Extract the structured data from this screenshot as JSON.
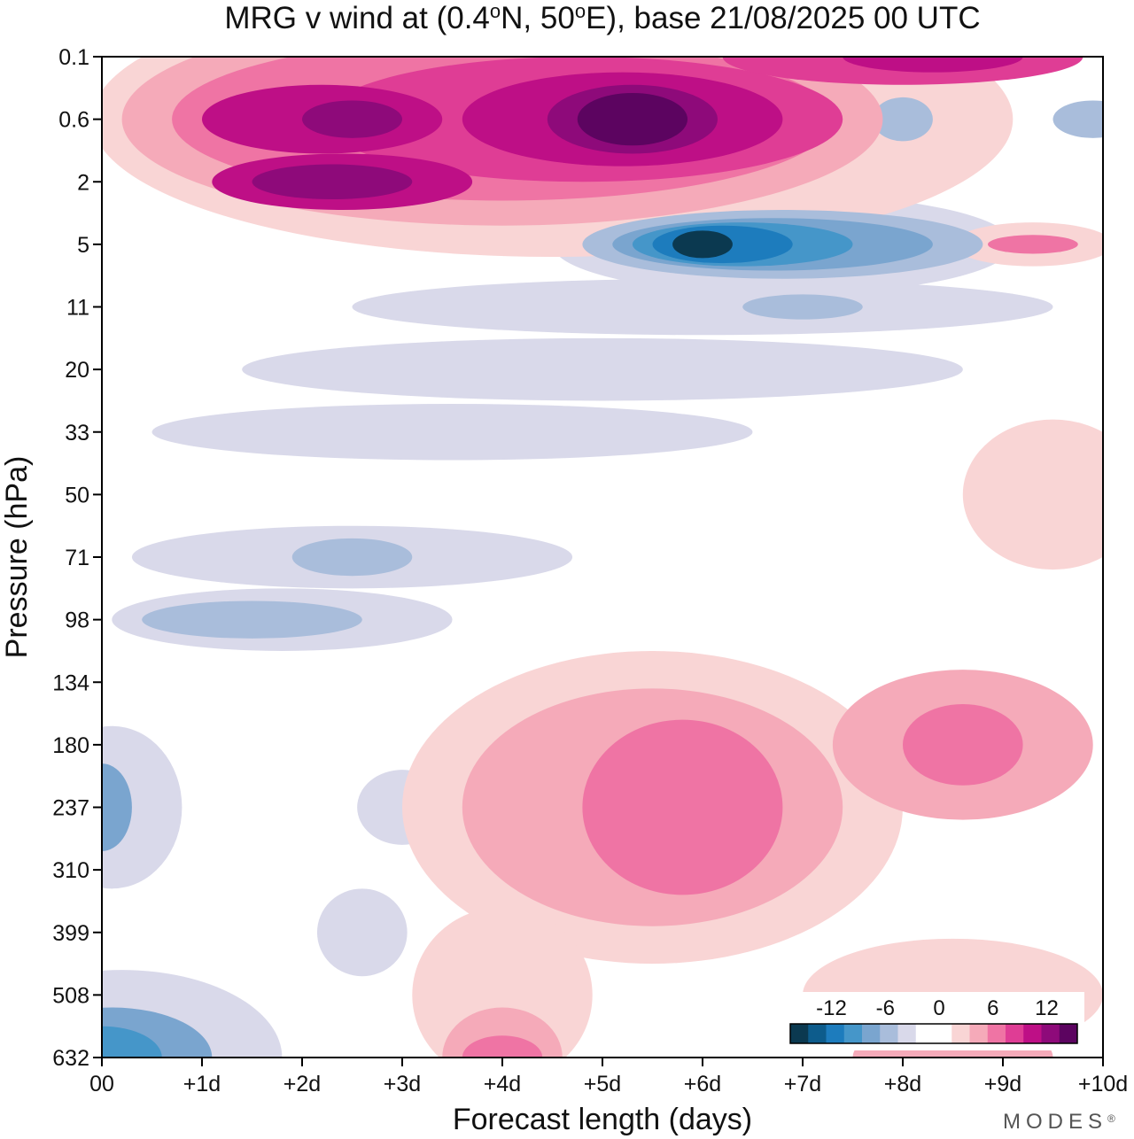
{
  "chart_data": {
    "type": "heatmap",
    "title": "MRG v wind at (0.4°N, 50°E),  base 21/08/2025  00 UTC",
    "title_parts": {
      "prefix": "MRG v wind at (0.4",
      "deg1": "o",
      "mid": "N, 50",
      "deg2": "o",
      "suffix": "E),  base 21/08/2025  00 UTC"
    },
    "xlabel": "Forecast length (days)",
    "ylabel": "Pressure (hPa)",
    "x_ticks": [
      "00",
      "+1d",
      "+2d",
      "+3d",
      "+4d",
      "+5d",
      "+6d",
      "+7d",
      "+8d",
      "+9d",
      "+10d"
    ],
    "y_ticks": [
      "0.1",
      "0.6",
      "2",
      "5",
      "11",
      "20",
      "33",
      "50",
      "71",
      "98",
      "134",
      "180",
      "237",
      "310",
      "399",
      "508",
      "632"
    ],
    "xlim_days": [
      0,
      10
    ],
    "colorbar": {
      "ticks": [
        "-12",
        "-6",
        "0",
        "6",
        "12"
      ],
      "colors": [
        "#0b3950",
        "#0d5c8c",
        "#1d7cbd",
        "#4596c9",
        "#7aa5cf",
        "#a9bddb",
        "#d9d9ea",
        "#ffffff",
        "#ffffff",
        "#f9d5d5",
        "#f5aab9",
        "#ef74a4",
        "#df3d95",
        "#be0f86",
        "#8e0a7a",
        "#5c0460"
      ]
    },
    "palette": {
      "neg1": "#d9d9ea",
      "neg2": "#a9bddb",
      "neg3": "#7aa5cf",
      "neg4": "#4596c9",
      "neg5": "#1d7cbd",
      "neg6": "#0d5c8c",
      "neg7": "#0b3950",
      "pos1": "#f9d5d5",
      "pos2": "#f5aab9",
      "pos3": "#ef74a4",
      "pos4": "#df3d95",
      "pos5": "#be0f86",
      "pos6": "#8e0a7a",
      "pos7": "#5c0460"
    },
    "features": [
      {
        "name": "strat-pos-top",
        "level": "pos1",
        "day": 4.5,
        "p": "0.6",
        "rx_days": 4.6,
        "ry_levels": 2.2
      },
      {
        "name": "strat-pos-top",
        "level": "pos2",
        "day": 4.0,
        "p": "0.6",
        "rx_days": 3.8,
        "ry_levels": 1.7
      },
      {
        "name": "strat-pos-top",
        "level": "pos3",
        "day": 4.0,
        "p": "0.6",
        "rx_days": 3.3,
        "ry_levels": 1.3
      },
      {
        "name": "strat-pos-top",
        "level": "pos4",
        "day": 4.8,
        "p": "0.6",
        "rx_days": 2.6,
        "ry_levels": 1.0
      },
      {
        "name": "strat-pos-top",
        "level": "pos5",
        "day": 5.2,
        "p": "0.6",
        "rx_days": 1.6,
        "ry_levels": 0.75
      },
      {
        "name": "strat-pos-top",
        "level": "pos6",
        "day": 5.3,
        "p": "0.6",
        "rx_days": 0.85,
        "ry_levels": 0.55
      },
      {
        "name": "strat-pos-top",
        "level": "pos7",
        "day": 5.3,
        "p": "0.6",
        "rx_days": 0.55,
        "ry_levels": 0.42
      },
      {
        "name": "strat-pos-west",
        "level": "pos5",
        "day": 2.2,
        "p": "0.6",
        "rx_days": 1.2,
        "ry_levels": 0.55
      },
      {
        "name": "strat-pos-west",
        "level": "pos6",
        "day": 2.5,
        "p": "0.6",
        "rx_days": 0.5,
        "ry_levels": 0.3
      },
      {
        "name": "strat-pos-mid",
        "level": "pos5",
        "day": 2.4,
        "p": "2",
        "rx_days": 1.3,
        "ry_levels": 0.45
      },
      {
        "name": "strat-pos-mid",
        "level": "pos6",
        "day": 2.3,
        "p": "2",
        "rx_days": 0.8,
        "ry_levels": 0.28
      },
      {
        "name": "strat-pos-ne",
        "level": "pos4",
        "day": 8.0,
        "p": "0.1",
        "rx_days": 1.8,
        "ry_levels": 0.45
      },
      {
        "name": "strat-pos-ne",
        "level": "pos5",
        "day": 8.3,
        "p": "0.1",
        "rx_days": 0.9,
        "ry_levels": 0.25
      },
      {
        "name": "strat-neg-core",
        "level": "neg1",
        "day": 6.8,
        "p": "5",
        "rx_days": 2.3,
        "ry_levels": 0.8
      },
      {
        "name": "strat-neg-core",
        "level": "neg2",
        "day": 6.8,
        "p": "5",
        "rx_days": 2.0,
        "ry_levels": 0.55
      },
      {
        "name": "strat-neg-core",
        "level": "neg3",
        "day": 6.7,
        "p": "5",
        "rx_days": 1.6,
        "ry_levels": 0.42
      },
      {
        "name": "strat-neg-core",
        "level": "neg4",
        "day": 6.4,
        "p": "5",
        "rx_days": 1.1,
        "ry_levels": 0.35
      },
      {
        "name": "strat-neg-core",
        "level": "neg5",
        "day": 6.2,
        "p": "5",
        "rx_days": 0.7,
        "ry_levels": 0.3
      },
      {
        "name": "strat-neg-core",
        "level": "neg7",
        "day": 6.0,
        "p": "5",
        "rx_days": 0.3,
        "ry_levels": 0.22
      },
      {
        "name": "east-pos",
        "level": "pos1",
        "day": 9.3,
        "p": "5",
        "rx_days": 0.8,
        "ry_levels": 0.35
      },
      {
        "name": "east-pos",
        "level": "pos3",
        "day": 9.3,
        "p": "5",
        "rx_days": 0.45,
        "ry_levels": 0.15
      },
      {
        "name": "trop-pos-main",
        "level": "pos1",
        "day": 5.5,
        "p": "237",
        "rx_days": 2.5,
        "ry_levels": 2.5
      },
      {
        "name": "trop-pos-main",
        "level": "pos2",
        "day": 5.5,
        "p": "237",
        "rx_days": 1.9,
        "ry_levels": 1.9
      },
      {
        "name": "trop-pos-main",
        "level": "pos3",
        "day": 5.8,
        "p": "237",
        "rx_days": 1.0,
        "ry_levels": 1.4
      },
      {
        "name": "trop-pos-east",
        "level": "pos2",
        "day": 8.6,
        "p": "180",
        "rx_days": 1.3,
        "ry_levels": 1.2
      },
      {
        "name": "trop-pos-east",
        "level": "pos3",
        "day": 8.6,
        "p": "180",
        "rx_days": 0.6,
        "ry_levels": 0.65
      },
      {
        "name": "sfc-neg",
        "level": "neg1",
        "day": 0.2,
        "p": "632",
        "rx_days": 1.6,
        "ry_levels": 1.4
      },
      {
        "name": "sfc-neg",
        "level": "neg3",
        "day": 0.1,
        "p": "632",
        "rx_days": 1.0,
        "ry_levels": 0.8
      },
      {
        "name": "sfc-neg",
        "level": "neg4",
        "day": 0.0,
        "p": "632",
        "rx_days": 0.6,
        "ry_levels": 0.5
      },
      {
        "name": "mid-neg-west",
        "level": "neg1",
        "day": 0.1,
        "p": "237",
        "rx_days": 0.7,
        "ry_levels": 1.3
      },
      {
        "name": "mid-neg-west",
        "level": "neg3",
        "day": 0.0,
        "p": "237",
        "rx_days": 0.3,
        "ry_levels": 0.7
      },
      {
        "name": "sfc-pos",
        "level": "pos1",
        "day": 4.0,
        "p": "508",
        "rx_days": 0.9,
        "ry_levels": 1.4
      },
      {
        "name": "sfc-pos",
        "level": "pos2",
        "day": 4.0,
        "p": "632",
        "rx_days": 0.6,
        "ry_levels": 0.8
      },
      {
        "name": "sfc-pos",
        "level": "pos3",
        "day": 4.0,
        "p": "632",
        "rx_days": 0.4,
        "ry_levels": 0.35
      },
      {
        "name": "sfc-pos-east",
        "level": "pos1",
        "day": 8.5,
        "p": "508",
        "rx_days": 1.5,
        "ry_levels": 0.9
      },
      {
        "name": "sfc-pos-east",
        "level": "pos2",
        "day": 8.5,
        "p": "632",
        "rx_days": 1.0,
        "ry_levels": 0.6
      },
      {
        "name": "lower-strat-neg",
        "level": "neg1",
        "day": 2.5,
        "p": "71",
        "rx_days": 2.2,
        "ry_levels": 0.5
      },
      {
        "name": "lower-strat-neg",
        "level": "neg2",
        "day": 2.5,
        "p": "71",
        "rx_days": 0.6,
        "ry_levels": 0.3
      },
      {
        "name": "lower-strat-neg-2",
        "level": "neg1",
        "day": 1.8,
        "p": "98",
        "rx_days": 1.7,
        "ry_levels": 0.5
      },
      {
        "name": "lower-strat-neg-2",
        "level": "neg2",
        "day": 1.5,
        "p": "98",
        "rx_days": 1.1,
        "ry_levels": 0.3
      },
      {
        "name": "mid-strat-neg",
        "level": "neg1",
        "day": 5.0,
        "p": "20",
        "rx_days": 3.6,
        "ry_levels": 0.5
      },
      {
        "name": "mid-strat-neg",
        "level": "neg1",
        "day": 3.5,
        "p": "33",
        "rx_days": 3.0,
        "ry_levels": 0.45
      },
      {
        "name": "mid-strat-neg-2",
        "level": "neg1",
        "day": 6.0,
        "p": "11",
        "rx_days": 3.5,
        "ry_levels": 0.45
      },
      {
        "name": "mid-strat-neg-2",
        "level": "neg2",
        "day": 7.0,
        "p": "11",
        "rx_days": 0.6,
        "ry_levels": 0.2
      },
      {
        "name": "tropos-neg",
        "level": "neg1",
        "day": 2.6,
        "p": "399",
        "rx_days": 0.45,
        "ry_levels": 0.7
      },
      {
        "name": "tropos-neg",
        "level": "neg1",
        "day": 3.0,
        "p": "237",
        "rx_days": 0.45,
        "ry_levels": 0.6
      },
      {
        "name": "east-pos-lower",
        "level": "pos1",
        "day": 9.5,
        "p": "50",
        "rx_days": 0.9,
        "ry_levels": 1.2
      },
      {
        "name": "upper-east-neg",
        "level": "neg2",
        "day": 8.0,
        "p": "0.6",
        "rx_days": 0.3,
        "ry_levels": 0.35
      },
      {
        "name": "upper-east-neg",
        "level": "neg2",
        "day": 9.9,
        "p": "0.6",
        "rx_days": 0.4,
        "ry_levels": 0.3
      }
    ]
  },
  "brand": "MODES",
  "brand_mark": "®"
}
